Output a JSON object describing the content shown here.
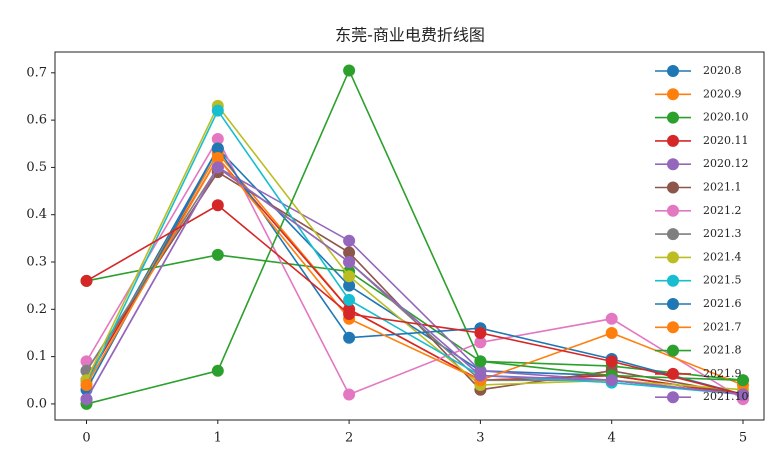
{
  "chart_data": {
    "type": "line",
    "title": "东莞-商业电费折线图",
    "x": [
      0,
      1,
      2,
      3,
      4,
      5
    ],
    "xlim": [
      -0.24,
      5.16
    ],
    "xticks": [
      0,
      1,
      2,
      3,
      4,
      5
    ],
    "ylim": [
      -0.034,
      0.744
    ],
    "yticks": [
      {
        "value": 0,
        "label": "0.0"
      },
      0.1,
      0.2,
      0.3,
      0.4,
      0.5,
      0.6,
      0.7
    ],
    "legend": "upper right",
    "series": [
      {
        "name": "2020.8",
        "color": "#1f77b4",
        "values": [
          0.05,
          0.54,
          0.25,
          0.07,
          0.06,
          0.02
        ]
      },
      {
        "name": "2020.9",
        "color": "#ff7f0e",
        "values": [
          0.05,
          0.53,
          0.2,
          0.05,
          0.06,
          0.02
        ]
      },
      {
        "name": "2020.10",
        "color": "#2ca02c",
        "values": [
          0.26,
          0.315,
          0.28,
          0.09,
          0.08,
          0.05
        ]
      },
      {
        "name": "2020.11",
        "color": "#d62728",
        "values": [
          0.05,
          0.52,
          0.2,
          0.05,
          0.06,
          0.02
        ]
      },
      {
        "name": "2020.12",
        "color": "#9467bd",
        "values": [
          0.01,
          0.5,
          0.345,
          0.07,
          0.05,
          0.02
        ]
      },
      {
        "name": "2021.1",
        "color": "#8c564b",
        "values": [
          0.07,
          0.49,
          0.32,
          0.03,
          0.07,
          0.02
        ]
      },
      {
        "name": "2021.2",
        "color": "#e377c2",
        "values": [
          0.09,
          0.56,
          0.02,
          0.13,
          0.18,
          0.01
        ]
      },
      {
        "name": "2021.3",
        "color": "#7f7f7f",
        "values": [
          0.07,
          0.5,
          0.3,
          0.05,
          0.05,
          0.02
        ]
      },
      {
        "name": "2021.4",
        "color": "#bcbd22",
        "values": [
          0.05,
          0.63,
          0.27,
          0.04,
          0.05,
          0.03
        ]
      },
      {
        "name": "2021.5",
        "color": "#17becf",
        "values": [
          0.04,
          0.62,
          0.22,
          0.06,
          0.045,
          0.02
        ]
      },
      {
        "name": "2021.6",
        "color": "#1f77b4",
        "values": [
          0.03,
          0.54,
          0.14,
          0.16,
          0.095,
          0.02
        ]
      },
      {
        "name": "2021.7",
        "color": "#ff7f0e",
        "values": [
          0.04,
          0.52,
          0.18,
          0.05,
          0.15,
          0.04
        ]
      },
      {
        "name": "2021.8",
        "color": "#2ca02c",
        "values": [
          0.0,
          0.07,
          0.705,
          0.09,
          0.06,
          0.05
        ]
      },
      {
        "name": "2021.9",
        "color": "#d62728",
        "values": [
          0.26,
          0.42,
          0.19,
          0.15,
          0.09,
          0.02
        ]
      },
      {
        "name": "2021.10",
        "color": "#9467bd",
        "values": [
          0.01,
          0.5,
          0.3,
          0.06,
          0.05,
          0.02
        ]
      }
    ]
  }
}
